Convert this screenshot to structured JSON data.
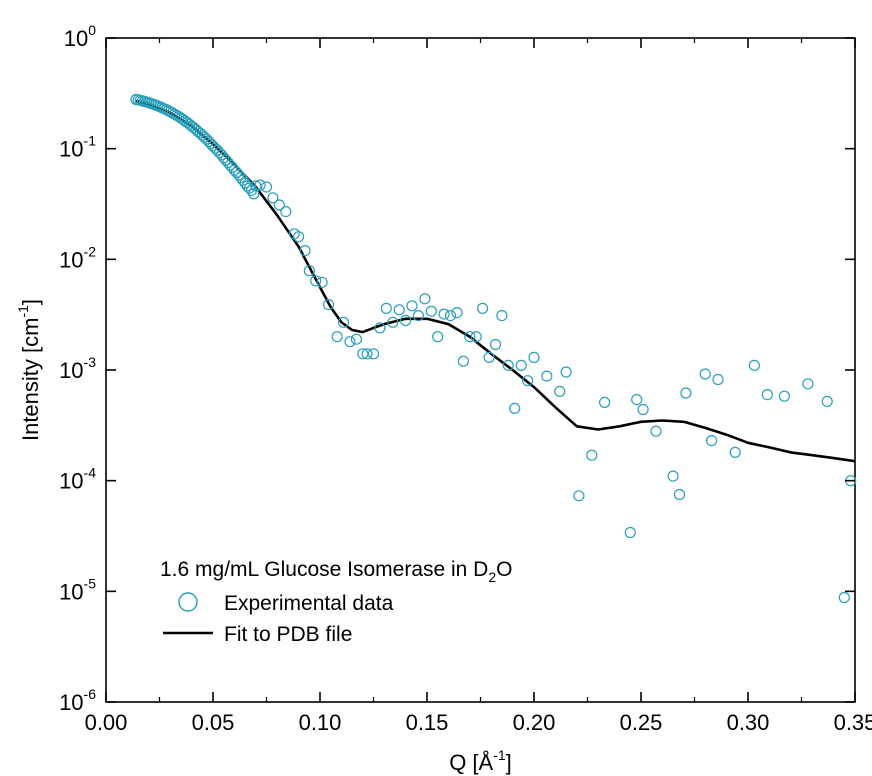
{
  "chart_data": {
    "type": "scatter",
    "title": "",
    "xlabel": "Q [Å",
    "xlabel_exp": "-1",
    "xlabel_close": "]",
    "ylabel": "Intensity [cm",
    "ylabel_exp": "-1",
    "ylabel_close": "]",
    "x_scale": "linear",
    "y_scale": "log",
    "xlim": [
      0.0,
      0.35
    ],
    "ylim": [
      1e-06,
      1
    ],
    "x_ticks": [
      "0.00",
      "0.05",
      "0.10",
      "0.15",
      "0.20",
      "0.25",
      "0.30",
      "0.35"
    ],
    "y_ticks": [
      {
        "base": "10",
        "exp": "-6"
      },
      {
        "base": "10",
        "exp": "-5"
      },
      {
        "base": "10",
        "exp": "-4"
      },
      {
        "base": "10",
        "exp": "-3"
      },
      {
        "base": "10",
        "exp": "-2"
      },
      {
        "base": "10",
        "exp": "-1"
      },
      {
        "base": "10",
        "exp": "0"
      }
    ],
    "grid": false,
    "legend_position": "bottom-left",
    "legend": {
      "heading": "1.6 mg/mL Glucose Isomerase in D",
      "heading_sub": "2",
      "heading_end": "O",
      "entries": [
        "Experimental data",
        "Fit to PDB file"
      ]
    },
    "colors": {
      "experimental": "#2a9fba",
      "fit": "#000000",
      "axes": "#000000"
    },
    "series": [
      {
        "name": "Experimental data",
        "kind": "markers",
        "marker": "open-circle",
        "points": [
          [
            0.014,
            0.278
          ],
          [
            0.015,
            0.276
          ],
          [
            0.016,
            0.273
          ],
          [
            0.017,
            0.27
          ],
          [
            0.018,
            0.267
          ],
          [
            0.019,
            0.263
          ],
          [
            0.02,
            0.26
          ],
          [
            0.021,
            0.256
          ],
          [
            0.022,
            0.252
          ],
          [
            0.023,
            0.248
          ],
          [
            0.024,
            0.244
          ],
          [
            0.025,
            0.24
          ],
          [
            0.026,
            0.235
          ],
          [
            0.027,
            0.23
          ],
          [
            0.028,
            0.226
          ],
          [
            0.029,
            0.221
          ],
          [
            0.03,
            0.216
          ],
          [
            0.031,
            0.211
          ],
          [
            0.032,
            0.205
          ],
          [
            0.033,
            0.2
          ],
          [
            0.034,
            0.195
          ],
          [
            0.035,
            0.189
          ],
          [
            0.036,
            0.184
          ],
          [
            0.037,
            0.178
          ],
          [
            0.038,
            0.172
          ],
          [
            0.039,
            0.166
          ],
          [
            0.04,
            0.16
          ],
          [
            0.041,
            0.155
          ],
          [
            0.042,
            0.149
          ],
          [
            0.043,
            0.143
          ],
          [
            0.044,
            0.138
          ],
          [
            0.045,
            0.132
          ],
          [
            0.046,
            0.127
          ],
          [
            0.047,
            0.122
          ],
          [
            0.048,
            0.116
          ],
          [
            0.049,
            0.111
          ],
          [
            0.05,
            0.106
          ],
          [
            0.051,
            0.101
          ],
          [
            0.052,
            0.097
          ],
          [
            0.053,
            0.092
          ],
          [
            0.054,
            0.088
          ],
          [
            0.055,
            0.083
          ],
          [
            0.056,
            0.079
          ],
          [
            0.057,
            0.075
          ],
          [
            0.058,
            0.071
          ],
          [
            0.059,
            0.068
          ],
          [
            0.06,
            0.064
          ],
          [
            0.061,
            0.061
          ],
          [
            0.062,
            0.058
          ],
          [
            0.063,
            0.055
          ],
          [
            0.064,
            0.052
          ],
          [
            0.065,
            0.049
          ],
          [
            0.066,
            0.046
          ],
          [
            0.067,
            0.044
          ],
          [
            0.068,
            0.042
          ],
          [
            0.069,
            0.039
          ],
          [
            0.07,
            0.046
          ],
          [
            0.072,
            0.047
          ],
          [
            0.075,
            0.045
          ],
          [
            0.078,
            0.036
          ],
          [
            0.081,
            0.031
          ],
          [
            0.084,
            0.027
          ],
          [
            0.088,
            0.017
          ],
          [
            0.09,
            0.016
          ],
          [
            0.093,
            0.012
          ],
          [
            0.095,
            0.0079
          ],
          [
            0.098,
            0.0064
          ],
          [
            0.101,
            0.0062
          ],
          [
            0.104,
            0.0039
          ],
          [
            0.108,
            0.002
          ],
          [
            0.111,
            0.0027
          ],
          [
            0.114,
            0.0018
          ],
          [
            0.117,
            0.0019
          ],
          [
            0.12,
            0.0014
          ],
          [
            0.122,
            0.0014
          ],
          [
            0.125,
            0.0014
          ],
          [
            0.128,
            0.0024
          ],
          [
            0.131,
            0.0036
          ],
          [
            0.134,
            0.0027
          ],
          [
            0.137,
            0.0035
          ],
          [
            0.14,
            0.0028
          ],
          [
            0.143,
            0.0038
          ],
          [
            0.146,
            0.0031
          ],
          [
            0.149,
            0.0044
          ],
          [
            0.152,
            0.0034
          ],
          [
            0.155,
            0.002
          ],
          [
            0.158,
            0.0032
          ],
          [
            0.161,
            0.0031
          ],
          [
            0.164,
            0.0033
          ],
          [
            0.167,
            0.0012
          ],
          [
            0.17,
            0.002
          ],
          [
            0.173,
            0.002
          ],
          [
            0.176,
            0.0036
          ],
          [
            0.179,
            0.0013
          ],
          [
            0.182,
            0.0017
          ],
          [
            0.185,
            0.0031
          ],
          [
            0.188,
            0.0011
          ],
          [
            0.191,
            0.00045
          ],
          [
            0.194,
            0.0011
          ],
          [
            0.197,
            0.0008
          ],
          [
            0.2,
            0.0013
          ],
          [
            0.206,
            0.00088
          ],
          [
            0.212,
            0.00064
          ],
          [
            0.215,
            0.00096
          ],
          [
            0.221,
            7.3e-05
          ],
          [
            0.227,
            0.00017
          ],
          [
            0.233,
            0.00051
          ],
          [
            0.245,
            3.4e-05
          ],
          [
            0.248,
            0.00054
          ],
          [
            0.251,
            0.00044
          ],
          [
            0.257,
            0.00028
          ],
          [
            0.265,
            0.00011
          ],
          [
            0.268,
            7.5e-05
          ],
          [
            0.271,
            0.00062
          ],
          [
            0.28,
            0.00092
          ],
          [
            0.283,
            0.00023
          ],
          [
            0.286,
            0.00082
          ],
          [
            0.294,
            0.00018
          ],
          [
            0.303,
            0.0011
          ],
          [
            0.309,
            0.0006
          ],
          [
            0.317,
            0.00058
          ],
          [
            0.328,
            0.00075
          ],
          [
            0.337,
            0.00052
          ],
          [
            0.345,
            8.8e-06
          ],
          [
            0.348,
            0.0001
          ]
        ]
      },
      {
        "name": "Fit to PDB file",
        "kind": "line",
        "points": [
          [
            0.014,
            0.27
          ],
          [
            0.02,
            0.25
          ],
          [
            0.03,
            0.21
          ],
          [
            0.04,
            0.16
          ],
          [
            0.05,
            0.11
          ],
          [
            0.06,
            0.072
          ],
          [
            0.07,
            0.045
          ],
          [
            0.08,
            0.025
          ],
          [
            0.09,
            0.013
          ],
          [
            0.1,
            0.0056
          ],
          [
            0.105,
            0.0037
          ],
          [
            0.11,
            0.0027
          ],
          [
            0.115,
            0.0023
          ],
          [
            0.12,
            0.0022
          ],
          [
            0.125,
            0.0024
          ],
          [
            0.13,
            0.0026
          ],
          [
            0.14,
            0.0029
          ],
          [
            0.15,
            0.0029
          ],
          [
            0.16,
            0.0026
          ],
          [
            0.17,
            0.002
          ],
          [
            0.18,
            0.0014
          ],
          [
            0.19,
            0.001
          ],
          [
            0.2,
            0.0007
          ],
          [
            0.21,
            0.00046
          ],
          [
            0.22,
            0.00031
          ],
          [
            0.23,
            0.00029
          ],
          [
            0.24,
            0.00031
          ],
          [
            0.25,
            0.00034
          ],
          [
            0.26,
            0.00035
          ],
          [
            0.27,
            0.00034
          ],
          [
            0.28,
            0.0003
          ],
          [
            0.29,
            0.00026
          ],
          [
            0.3,
            0.00022
          ],
          [
            0.31,
            0.0002
          ],
          [
            0.32,
            0.00018
          ],
          [
            0.33,
            0.00017
          ],
          [
            0.34,
            0.00016
          ],
          [
            0.35,
            0.00015
          ]
        ]
      }
    ]
  }
}
